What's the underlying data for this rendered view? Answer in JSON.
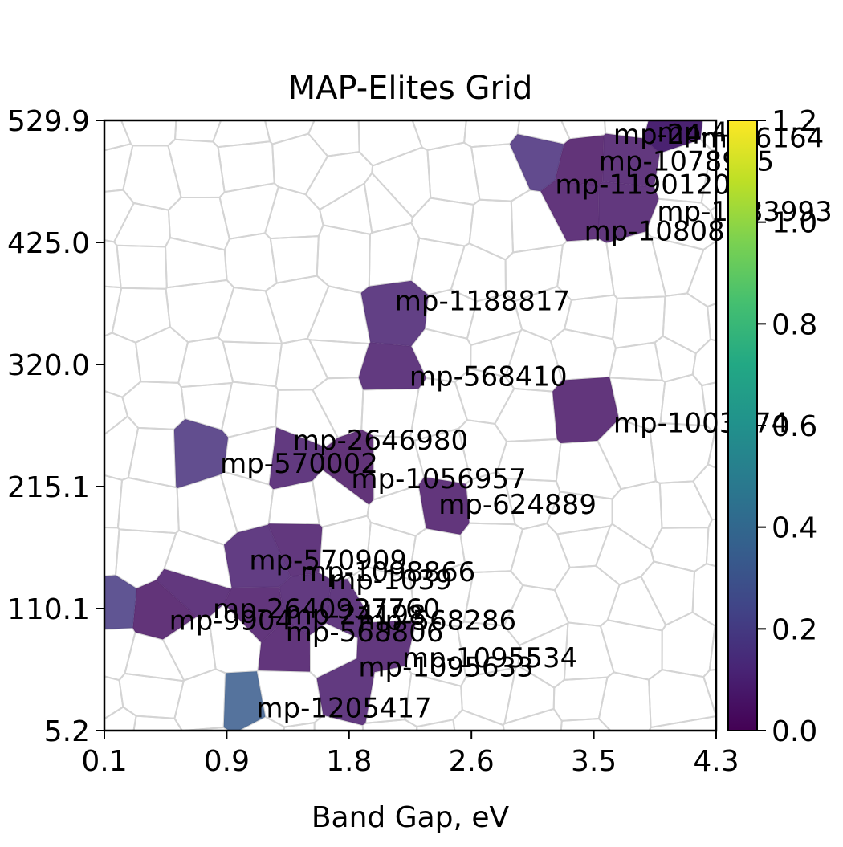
{
  "chart_data": {
    "type": "heatmap",
    "title": "MAP-Elites Grid",
    "xlabel": "Band Gap, eV",
    "ylabel": "",
    "xlim": [
      0.1,
      4.3
    ],
    "ylim": [
      5.2,
      529.9
    ],
    "x_ticks": [
      "0.1",
      "0.9",
      "1.8",
      "2.6",
      "3.5",
      "4.3"
    ],
    "y_ticks": [
      "5.2",
      "110.1",
      "215.1",
      "320.0",
      "425.0",
      "529.9"
    ],
    "colorbar": {
      "colormap": "viridis",
      "range": [
        0.0,
        1.2
      ],
      "ticks": [
        "0.0",
        "0.2",
        "0.4",
        "0.6",
        "0.8",
        "1.0",
        "1.2"
      ]
    },
    "grid": "voronoi",
    "points": [
      {
        "label": "mp-47",
        "x": 3.85,
        "y": 520,
        "value": 0.06
      },
      {
        "label": "mp-24",
        "x": 3.55,
        "y": 518,
        "value": 0.07
      },
      {
        "label": "mp-6164",
        "x": 4.15,
        "y": 515,
        "value": 0.1
      },
      {
        "label": "mp-1078945",
        "x": 3.45,
        "y": 495,
        "value": 0.05
      },
      {
        "label": "mp-1190120",
        "x": 3.15,
        "y": 475,
        "value": 0.15
      },
      {
        "label": "mp-1083993",
        "x": 3.85,
        "y": 452,
        "value": 0.07
      },
      {
        "label": "mp-1080826",
        "x": 3.35,
        "y": 435,
        "value": 0.06
      },
      {
        "label": "mp-1188817",
        "x": 2.05,
        "y": 375,
        "value": 0.1
      },
      {
        "label": "mp-568410",
        "x": 2.15,
        "y": 310,
        "value": 0.08
      },
      {
        "label": "mp-1003374",
        "x": 3.55,
        "y": 270,
        "value": 0.06
      },
      {
        "label": "mp-2646980",
        "x": 1.35,
        "y": 255,
        "value": 0.08
      },
      {
        "label": "mp-570002",
        "x": 0.85,
        "y": 235,
        "value": 0.16
      },
      {
        "label": "mp-1056957",
        "x": 1.75,
        "y": 222,
        "value": 0.05
      },
      {
        "label": "mp-624889",
        "x": 2.35,
        "y": 200,
        "value": 0.06
      },
      {
        "label": "mp-570909",
        "x": 1.05,
        "y": 152,
        "value": 0.09
      },
      {
        "label": "mp-1098866",
        "x": 1.4,
        "y": 142,
        "value": 0.07
      },
      {
        "label": "mp-1039",
        "x": 1.6,
        "y": 135,
        "value": 0.08
      },
      {
        "label": "mp-2640937760",
        "x": 0.8,
        "y": 110,
        "value": 0.07
      },
      {
        "label": "mp-9904",
        "x": 0.5,
        "y": 100,
        "value": 0.05
      },
      {
        "label": "mp-568286",
        "x": 1.8,
        "y": 100,
        "value": 0.08
      },
      {
        "label": "mp-24198",
        "x": 1.3,
        "y": 105,
        "value": 0.06
      },
      {
        "label": "mp-568806",
        "x": 1.3,
        "y": 90,
        "value": 0.06
      },
      {
        "label": "mp-1095534",
        "x": 2.1,
        "y": 68,
        "value": 0.07
      },
      {
        "label": "mp-1095633",
        "x": 1.8,
        "y": 60,
        "value": 0.08
      },
      {
        "label": "mp-1205417",
        "x": 1.1,
        "y": 25,
        "value": 0.34
      },
      {
        "label": "",
        "x": 0.15,
        "y": 105,
        "value": 0.19
      }
    ]
  }
}
